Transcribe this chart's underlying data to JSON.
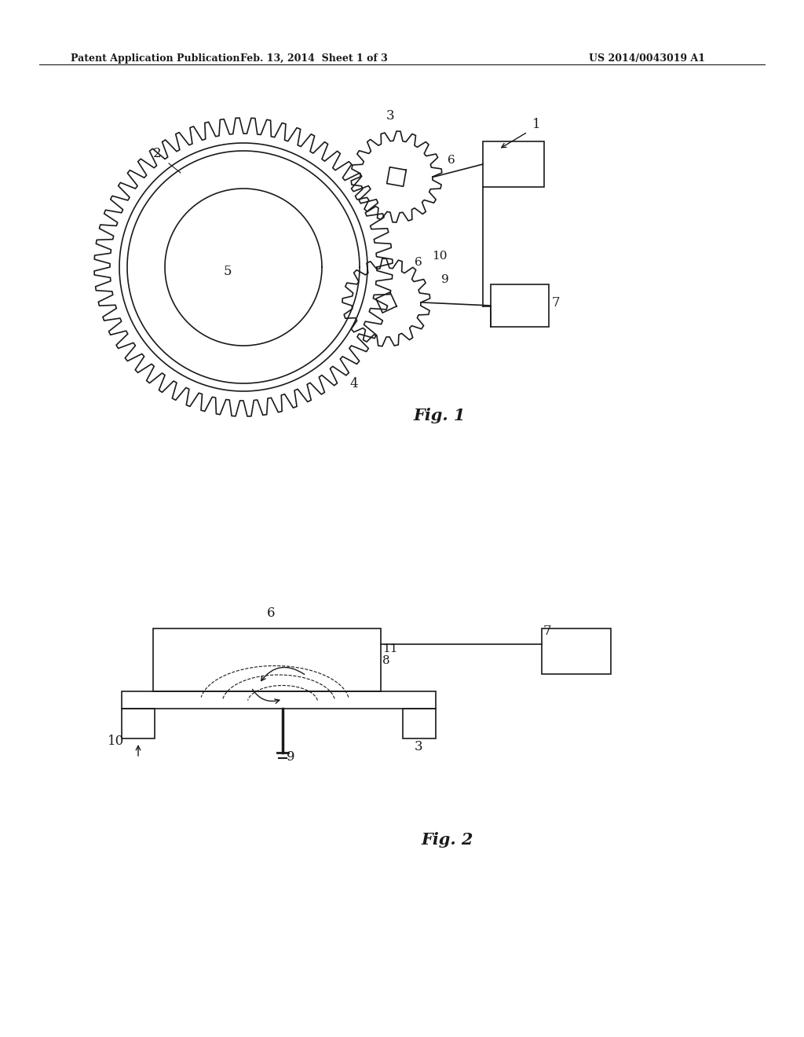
{
  "bg_color": "#ffffff",
  "header_left": "Patent Application Publication",
  "header_mid": "Feb. 13, 2014  Sheet 1 of 3",
  "header_right": "US 2014/0043019 A1",
  "fig1_label": "Fig. 1",
  "fig2_label": "Fig. 2"
}
